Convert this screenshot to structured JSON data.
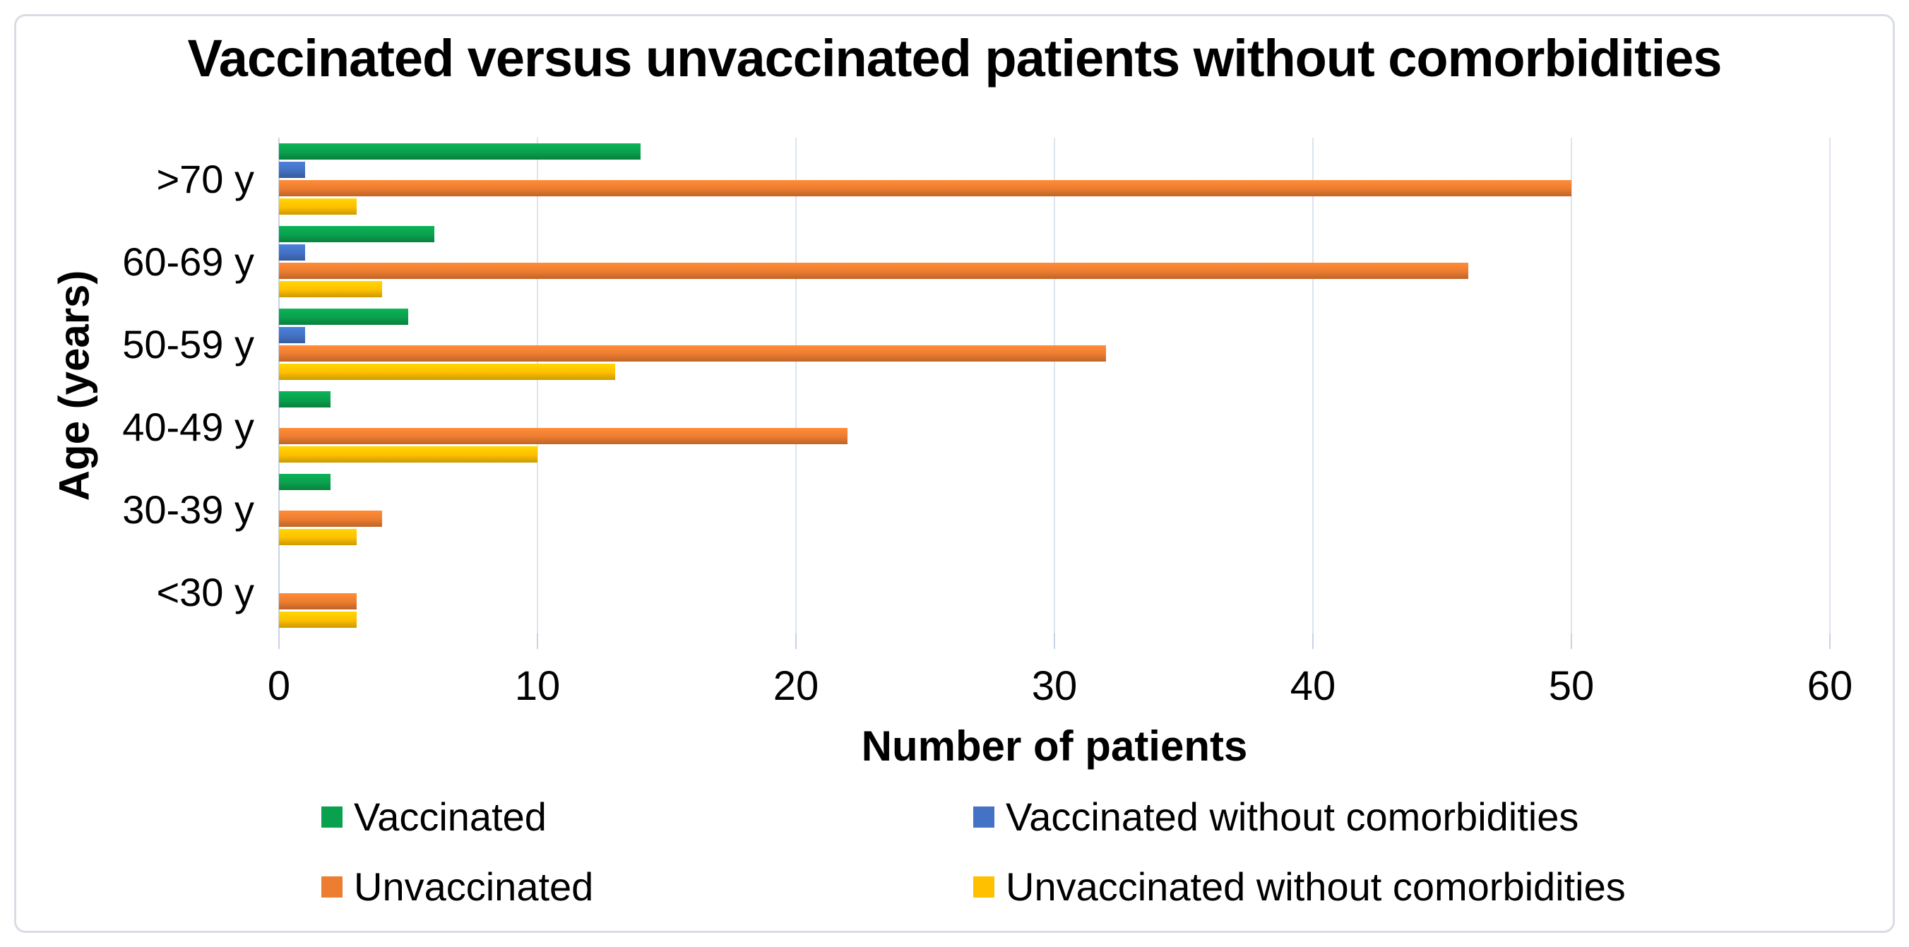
{
  "chart_data": {
    "type": "bar",
    "orientation": "horizontal",
    "title": "Vaccinated versus unvaccinated patients without comorbidities",
    "categories": [
      ">70 y",
      "60-69 y",
      "50-59 y",
      "40-49 y",
      "30-39 y",
      "<30 y"
    ],
    "series": [
      {
        "name": "Vaccinated",
        "color": "#0AA14E",
        "values": [
          14,
          6,
          5,
          2,
          2,
          0
        ]
      },
      {
        "name": "Vaccinated without comorbidities",
        "color": "#4472C4",
        "values": [
          1,
          1,
          1,
          0,
          0,
          0
        ]
      },
      {
        "name": "Unvaccinated",
        "color": "#ED7D31",
        "values": [
          50,
          46,
          32,
          22,
          4,
          3
        ]
      },
      {
        "name": "Unvaccinated without comorbidities",
        "color": "#FFC000",
        "values": [
          3,
          4,
          13,
          10,
          3,
          3
        ]
      }
    ],
    "xlabel": "Number of patients",
    "ylabel": "Age (years)",
    "xlim": [
      0,
      60
    ],
    "xticks": [
      0,
      10,
      20,
      30,
      40,
      50,
      60
    ],
    "grid": true,
    "legend_position": "bottom",
    "legend_layout": [
      [
        0,
        1
      ],
      [
        2,
        3
      ]
    ]
  },
  "colors": {
    "gridline": "#dce4f0",
    "axis_line": "#c8d3e3",
    "tick_mark": "#c8d3e3",
    "text": "#000000",
    "figure_border": "#d8dde4",
    "background": "#ffffff"
  }
}
